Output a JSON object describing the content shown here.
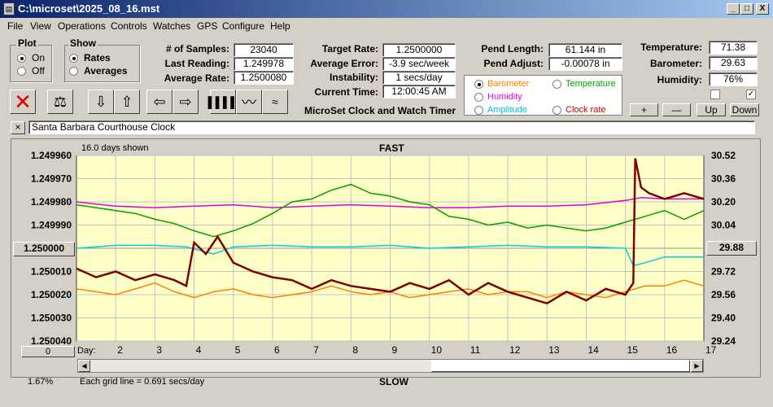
{
  "window": {
    "title": "C:\\microset\\2025_08_16.mst",
    "minimize": "_",
    "maximize": "□",
    "close": "X"
  },
  "menu": [
    "File",
    "View",
    "Operations",
    "Controls",
    "Watches",
    "GPS",
    "Configure",
    "Help"
  ],
  "plot_group": {
    "title": "Plot",
    "on": "On",
    "off": "Off",
    "selected": "On"
  },
  "show_group": {
    "title": "Show",
    "rates": "Rates",
    "averages": "Averages",
    "selected": "Rates"
  },
  "stats": {
    "samples_label": "# of Samples:",
    "samples": "23040",
    "last_label": "Last Reading:",
    "last": "1.249978",
    "avg_label": "Average Rate:",
    "avg": "1.2500080",
    "target_label": "Target Rate:",
    "target": "1.2500000",
    "error_label": "Average Error:",
    "error": "-3.9 sec/week",
    "instab_label": "Instability:",
    "instab": "1 secs/day",
    "time_label": "Current Time:",
    "time": "12:00:45 AM",
    "pendlen_label": "Pend Length:",
    "pendlen": "61.144 in",
    "pendadj_label": "Pend Adjust:",
    "pendadj": "-0.00078 in",
    "temp_label": "Temperature:",
    "temp": "71.38",
    "baro_label": "Barometer:",
    "baro": "29.63",
    "hum_label": "Humidity:",
    "hum": "76%"
  },
  "app_title": "MicroSet Clock and Watch Timer",
  "legend": {
    "barometer": "Barometer",
    "temperature": "Temperature",
    "humidity": "Humidity",
    "amplitude": "Amplitude",
    "clockrate": "Clock rate",
    "selected": "Barometer",
    "colors": {
      "barometer": "#ff8000",
      "temperature": "#00a000",
      "humidity": "#e000e0",
      "amplitude": "#00c0e0",
      "clockrate": "#c00000"
    }
  },
  "adjust_buttons": {
    "plus": "+",
    "minus": "—",
    "up": "Up",
    "down": "Down"
  },
  "clock_name": "Santa Barbara Courthouse Clock",
  "clock_close": "×",
  "chart_header": {
    "days_shown": "16.0 days shown",
    "fast": "FAST",
    "slow": "SLOW",
    "grid_note": "Each grid line = 0.691 secs/day",
    "percent": "1.67%",
    "left_center_btn": "1.250000",
    "right_center_btn": "29.88",
    "left_bottom_btn": "0",
    "day_label": "Day:"
  },
  "chart_data": {
    "type": "line",
    "x_label": "Day:",
    "x_ticks": [
      "2",
      "3",
      "4",
      "5",
      "6",
      "7",
      "8",
      "9",
      "10",
      "11",
      "12",
      "13",
      "14",
      "15",
      "16",
      "17"
    ],
    "xlim": [
      1.0,
      17.0
    ],
    "left_axis_ticks": [
      "1.249960",
      "1.249970",
      "1.249980",
      "1.249990",
      "1.250000",
      "1.250010",
      "1.250020",
      "1.250030",
      "1.250040"
    ],
    "left_ylim": [
      1.24996,
      1.25004
    ],
    "right_axis_ticks": [
      "30.52",
      "30.36",
      "30.20",
      "30.04",
      "29.88",
      "29.72",
      "29.56",
      "29.40",
      "29.24"
    ],
    "right_ylim": [
      29.24,
      30.52
    ],
    "series": [
      {
        "name": "Humidity",
        "color": "#e000e0",
        "x": [
          1,
          2,
          3,
          4,
          5,
          6,
          7,
          8,
          9,
          10,
          11,
          12,
          13,
          14,
          15,
          15.4,
          16,
          17
        ],
        "y": [
          30.2,
          30.17,
          30.16,
          30.17,
          30.18,
          30.16,
          30.17,
          30.18,
          30.17,
          30.16,
          30.16,
          30.17,
          30.17,
          30.18,
          30.21,
          30.23,
          30.22,
          30.22
        ]
      },
      {
        "name": "Temperature",
        "color": "#00a000",
        "x": [
          1,
          1.5,
          2,
          2.5,
          3,
          3.5,
          4,
          4.5,
          5,
          5.5,
          6,
          6.5,
          7,
          7.5,
          8,
          8.5,
          9,
          9.5,
          10,
          10.5,
          11,
          11.5,
          12,
          12.5,
          13,
          13.5,
          14,
          14.5,
          15,
          15.5,
          16,
          16.5,
          17
        ],
        "y": [
          30.18,
          30.16,
          30.14,
          30.12,
          30.08,
          30.05,
          30.0,
          29.96,
          30.0,
          30.05,
          30.12,
          30.2,
          30.22,
          30.28,
          30.32,
          30.26,
          30.24,
          30.2,
          30.18,
          30.1,
          30.08,
          30.04,
          30.06,
          30.02,
          30.04,
          30.02,
          30.0,
          30.02,
          30.06,
          30.1,
          30.14,
          30.08,
          30.14
        ]
      },
      {
        "name": "Amplitude",
        "color": "#00d0e0",
        "x": [
          1,
          2,
          3,
          3.8,
          4.5,
          5,
          6,
          7,
          8,
          9,
          10,
          11,
          12,
          13,
          14,
          15,
          15.2,
          15.5,
          16,
          17
        ],
        "y": [
          29.88,
          29.9,
          29.9,
          29.89,
          29.84,
          29.89,
          29.9,
          29.89,
          29.89,
          29.9,
          29.88,
          29.89,
          29.9,
          29.89,
          29.89,
          29.88,
          29.76,
          29.78,
          29.82,
          29.82
        ]
      },
      {
        "name": "Barometer",
        "color": "#ff8000",
        "x": [
          1,
          1.5,
          2,
          2.5,
          3,
          3.5,
          4,
          4.5,
          5,
          5.5,
          6,
          6.5,
          7,
          7.5,
          8,
          8.5,
          9,
          9.5,
          10,
          10.5,
          11,
          11.5,
          12,
          12.5,
          13,
          13.5,
          14,
          14.5,
          15,
          15.5,
          16,
          16.5,
          17
        ],
        "y": [
          29.6,
          29.58,
          29.56,
          29.6,
          29.64,
          29.58,
          29.54,
          29.58,
          29.6,
          29.56,
          29.54,
          29.56,
          29.58,
          29.62,
          29.58,
          29.56,
          29.58,
          29.54,
          29.56,
          29.58,
          29.6,
          29.56,
          29.58,
          29.58,
          29.54,
          29.58,
          29.56,
          29.54,
          29.58,
          29.62,
          29.62,
          29.66,
          29.62
        ]
      },
      {
        "name": "Clock rate",
        "color": "#800000",
        "x": [
          1,
          1.5,
          2,
          2.5,
          3,
          3.5,
          3.8,
          4,
          4.3,
          4.6,
          5,
          5.5,
          6,
          6.5,
          7,
          7.5,
          8,
          8.5,
          9,
          9.5,
          10,
          10.5,
          11,
          11.5,
          12,
          12.5,
          13,
          13.5,
          14,
          14.5,
          15,
          15.2,
          15.25,
          15.4,
          15.6,
          16,
          16.5,
          17
        ],
        "y": [
          29.74,
          29.68,
          29.72,
          29.66,
          29.7,
          29.66,
          29.62,
          29.92,
          29.84,
          29.96,
          29.78,
          29.72,
          29.68,
          29.66,
          29.6,
          29.66,
          29.62,
          29.6,
          29.58,
          29.64,
          29.6,
          29.66,
          29.56,
          29.64,
          29.58,
          29.54,
          29.5,
          29.58,
          29.52,
          29.6,
          29.56,
          29.64,
          30.5,
          30.3,
          30.26,
          30.22,
          30.26,
          30.22
        ]
      }
    ]
  }
}
